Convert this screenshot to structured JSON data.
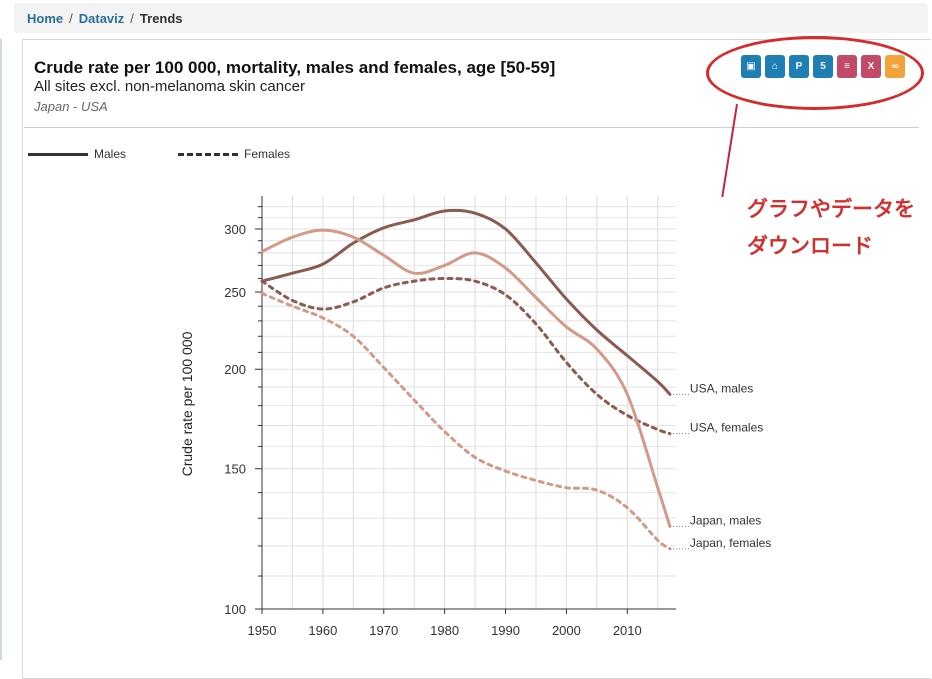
{
  "breadcrumb": {
    "home": "Home",
    "dataviz": "Dataviz",
    "current": "Trends"
  },
  "header": {
    "title": "Crude rate per 100 000, mortality, males and females, age [50-59]",
    "subtitle": "All sites excl. non-melanoma skin cancer",
    "region": "Japan - USA"
  },
  "legend": {
    "males": "Males",
    "females": "Females"
  },
  "export_buttons": [
    {
      "icon": "image-icon",
      "glyph": "▣",
      "color": "#1f7fb4"
    },
    {
      "icon": "pdf-icon",
      "glyph": "⌂",
      "color": "#1f7fb4"
    },
    {
      "icon": "ppt-icon",
      "glyph": "P",
      "color": "#1f7fb4"
    },
    {
      "icon": "html5-icon",
      "glyph": "5",
      "color": "#1f7fb4"
    },
    {
      "icon": "csv-icon",
      "glyph": "≡",
      "color": "#c04a68"
    },
    {
      "icon": "excel-icon",
      "glyph": "X",
      "color": "#c04a68"
    },
    {
      "icon": "link-icon",
      "glyph": "∞",
      "color": "#f2a33c"
    }
  ],
  "annotation": {
    "line1": "グラフやデータを",
    "line2": "ダウンロード",
    "color": "#d32f2f"
  },
  "chart_data": {
    "type": "line",
    "ylabel": "Crude rate per 100 000",
    "xlabel": "",
    "xlim": [
      1950,
      2018
    ],
    "ylim": [
      100,
      330
    ],
    "yscale": "log",
    "xticks": [
      1950,
      1960,
      1970,
      1980,
      1990,
      2000,
      2010
    ],
    "yticks": [
      100,
      150,
      200,
      250,
      300
    ],
    "grid": true,
    "series": [
      {
        "name": "USA, males",
        "style": "solid",
        "color": "#8b5a50",
        "x": [
          1950,
          1955,
          1960,
          1965,
          1970,
          1975,
          1980,
          1985,
          1990,
          1995,
          2000,
          2005,
          2010,
          2015,
          2017
        ],
        "y": [
          258,
          264,
          271,
          288,
          301,
          308,
          316,
          314,
          300,
          272,
          245,
          224,
          208,
          193,
          186
        ]
      },
      {
        "name": "USA, females",
        "style": "dashed",
        "color": "#8b5a50",
        "x": [
          1950,
          1955,
          1960,
          1965,
          1970,
          1975,
          1980,
          1985,
          1990,
          1995,
          2000,
          2005,
          2010,
          2015,
          2017
        ],
        "y": [
          258,
          244,
          238,
          243,
          253,
          258,
          260,
          258,
          248,
          228,
          204,
          186,
          175,
          168,
          166
        ]
      },
      {
        "name": "Japan, males",
        "style": "solid",
        "color": "#d49a88",
        "x": [
          1950,
          1955,
          1960,
          1965,
          1970,
          1975,
          1980,
          1985,
          1990,
          1995,
          2000,
          2005,
          2010,
          2015,
          2017
        ],
        "y": [
          281,
          293,
          299,
          293,
          278,
          264,
          270,
          280,
          268,
          246,
          226,
          212,
          186,
          142,
          127
        ]
      },
      {
        "name": "Japan, females",
        "style": "dashed",
        "color": "#d49a88",
        "x": [
          1950,
          1955,
          1960,
          1965,
          1970,
          1975,
          1980,
          1985,
          1990,
          1995,
          2000,
          2005,
          2010,
          2015,
          2017
        ],
        "y": [
          249,
          240,
          232,
          220,
          201,
          183,
          167,
          155,
          149,
          145,
          142,
          141,
          134,
          122,
          119
        ]
      }
    ]
  }
}
